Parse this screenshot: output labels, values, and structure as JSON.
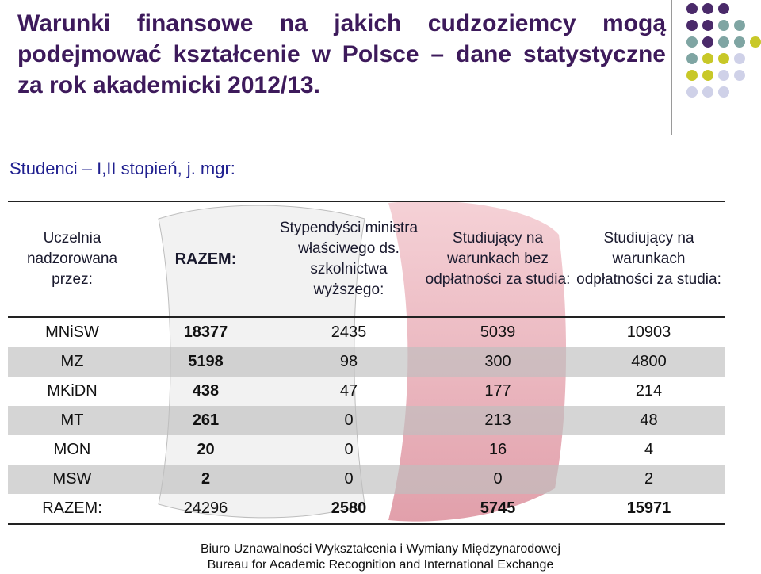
{
  "title": "Warunki finansowe na jakich cudzoziemcy mogą podejmować kształcenie w Polsce – dane statystyczne za rok akademicki 2012/13.",
  "subtitle": "Studenci – I,II stopień, j. mgr:",
  "table": {
    "headers": [
      "Uczelnia nadzorowana przez:",
      "RAZEM:",
      "Stypendyści ministra właściwego ds. szkolnictwa wyższego:",
      "Studiujący na warunkach bez odpłatności za studia:",
      "Studiujący na warunkach odpłatności za studia:"
    ],
    "rows": [
      {
        "name": "MNiSW",
        "total": "18377",
        "scholar": "2435",
        "free": "5039",
        "paid": "10903"
      },
      {
        "name": "MZ",
        "total": "5198",
        "scholar": "98",
        "free": "300",
        "paid": "4800"
      },
      {
        "name": "MKiDN",
        "total": "438",
        "scholar": "47",
        "free": "177",
        "paid": "214"
      },
      {
        "name": "MT",
        "total": "261",
        "scholar": "0",
        "free": "213",
        "paid": "48"
      },
      {
        "name": "MON",
        "total": "20",
        "scholar": "0",
        "free": "16",
        "paid": "4"
      },
      {
        "name": "MSW",
        "total": "2",
        "scholar": "0",
        "free": "0",
        "paid": "2"
      }
    ],
    "summary": {
      "name": "RAZEM:",
      "total": "24296",
      "scholar": "2580",
      "free": "5745",
      "paid": "15971"
    }
  },
  "footer": {
    "line1": "Biuro Uznawalności Wykształcenia i Wymiany Międzynarodowej",
    "line2": "Bureau for Academic Recognition and International Exchange"
  },
  "colors": {
    "title": "#3d1a5b",
    "dot_purple": "#4a2a6a",
    "dot_teal": "#7fa5a3",
    "dot_yellow": "#c8c828",
    "dot_lavender": "#cfd1e8",
    "row_shade": "#bebebe",
    "globe_pink": "#e8a7b1"
  }
}
